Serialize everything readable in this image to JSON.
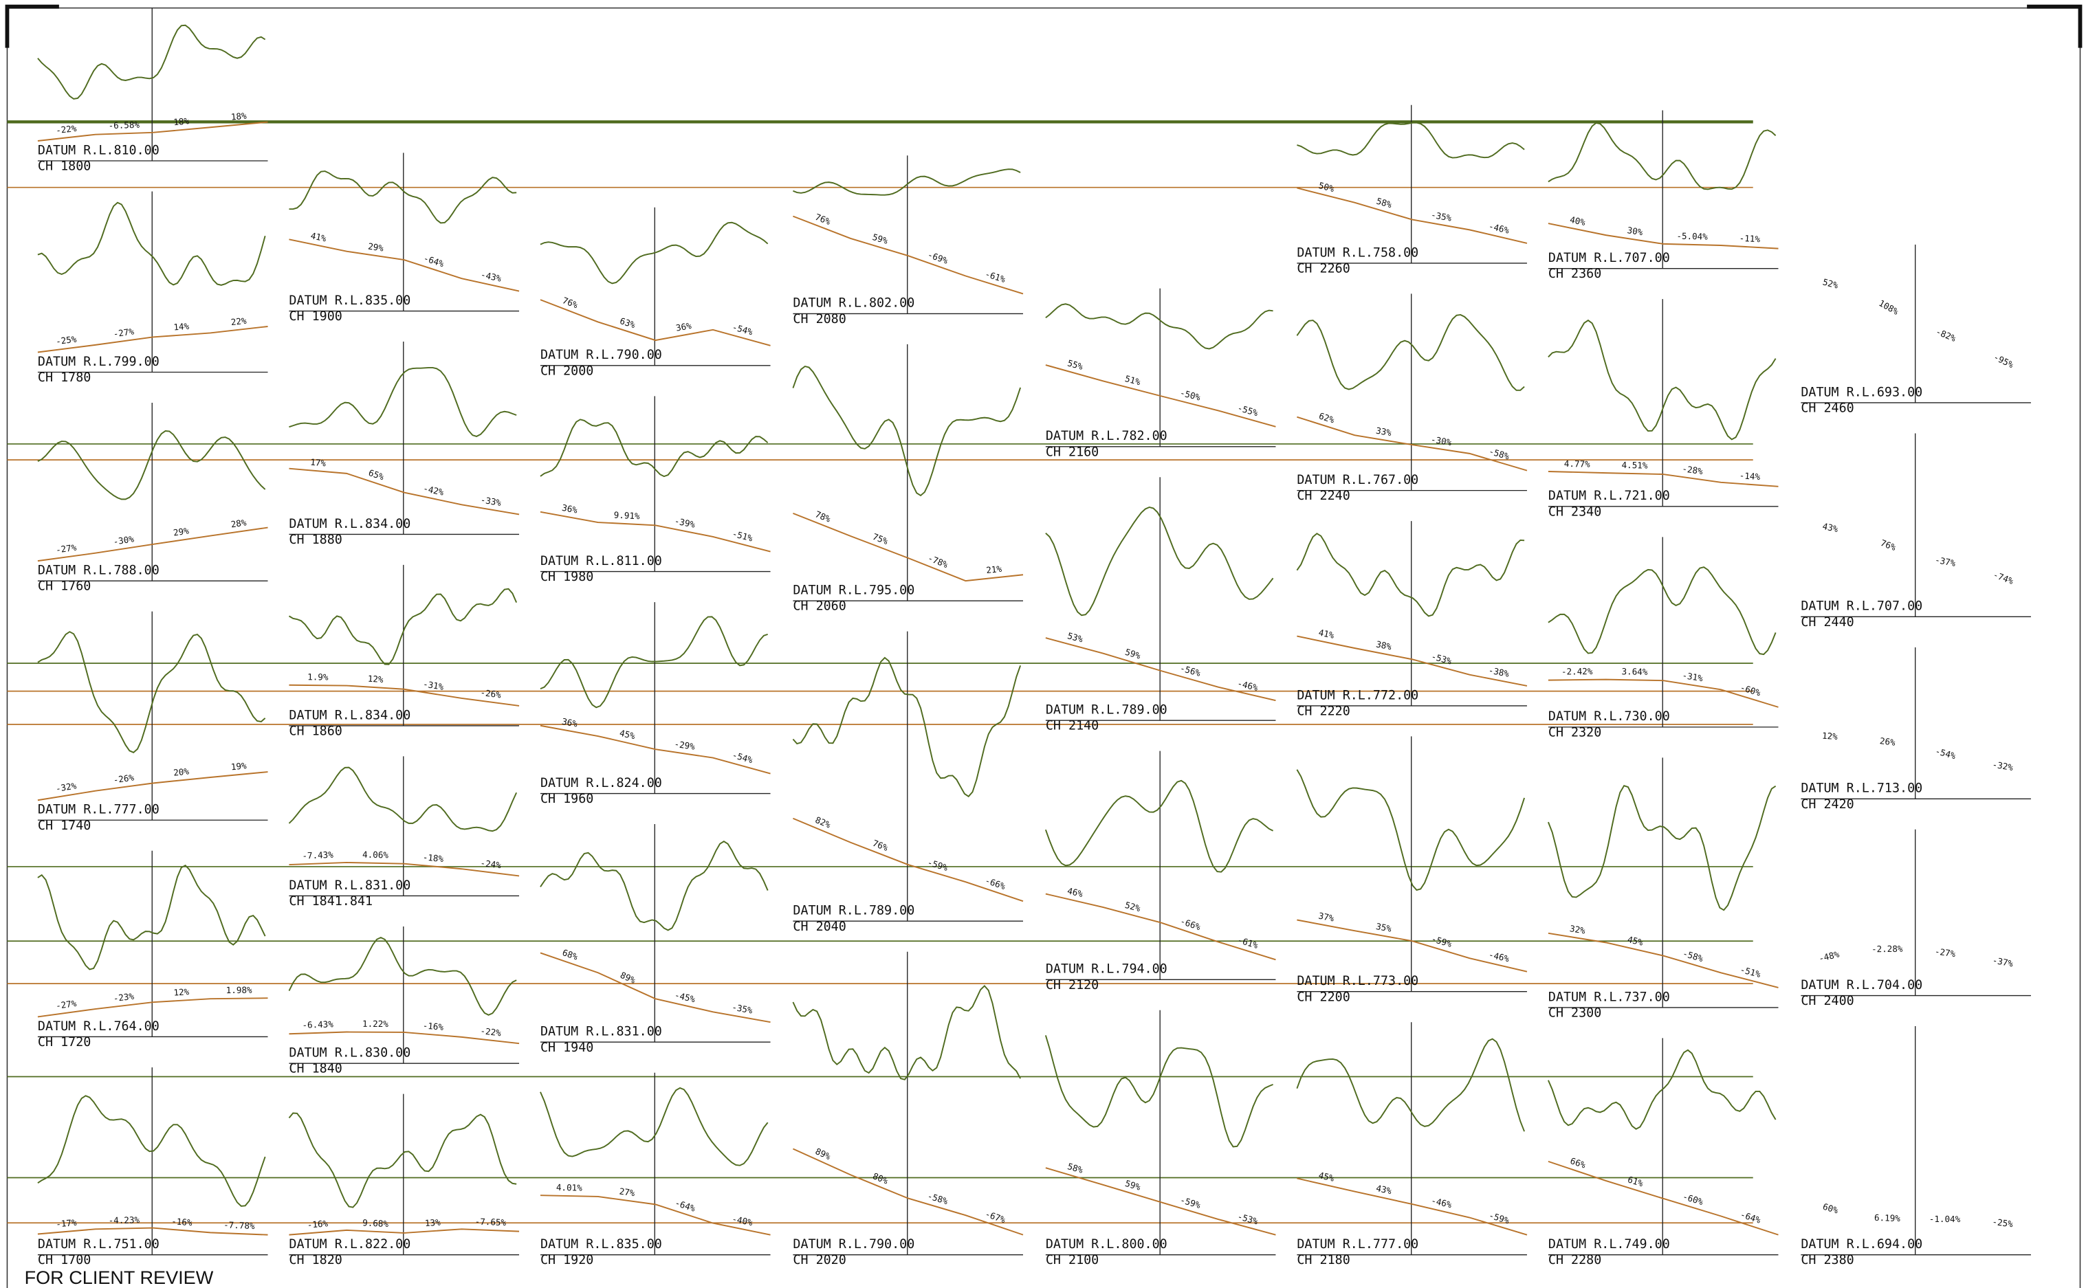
{
  "footer": {
    "text": "FOR CLIENT REVIEW"
  },
  "columns": [
    {
      "sections": [
        {
          "datum": "DATUM R.L.810.00",
          "chainage": "CH 1800",
          "slopes": [
            "-22%",
            "-6.58%",
            "18%",
            "18%"
          ]
        },
        {
          "datum": "DATUM R.L.799.00",
          "chainage": "CH 1780",
          "slopes": [
            "-25%",
            "-27%",
            "14%",
            "22%"
          ]
        },
        {
          "datum": "DATUM R.L.788.00",
          "chainage": "CH 1760",
          "slopes": [
            "-27%",
            "-30%",
            "29%",
            "28%"
          ]
        },
        {
          "datum": "DATUM R.L.777.00",
          "chainage": "CH 1740",
          "slopes": [
            "-32%",
            "-26%",
            "20%",
            "19%"
          ]
        },
        {
          "datum": "DATUM R.L.764.00",
          "chainage": "CH 1720",
          "slopes": [
            "-27%",
            "-23%",
            "12%",
            "1.98%"
          ]
        },
        {
          "datum": "DATUM R.L.751.00",
          "chainage": "CH 1700",
          "slopes": [
            "-17%",
            "-4.23%",
            "-16%",
            "-7.78%"
          ]
        }
      ]
    },
    {
      "sections": [
        {
          "datum": "DATUM R.L.835.00",
          "chainage": "CH 1900",
          "slopes": [
            "41%",
            "29%",
            "-64%",
            "-43%"
          ]
        },
        {
          "datum": "DATUM R.L.834.00",
          "chainage": "CH 1880",
          "slopes": [
            "17%",
            "65%",
            "-42%",
            "-33%"
          ]
        },
        {
          "datum": "DATUM R.L.834.00",
          "chainage": "CH 1860",
          "slopes": [
            "1.9%",
            "12%",
            "-31%",
            "-26%"
          ]
        },
        {
          "datum": "DATUM R.L.831.00",
          "chainage": "CH 1841.841",
          "slopes": [
            "-7.43%",
            "4.06%",
            "-18%",
            "-24%"
          ]
        },
        {
          "datum": "DATUM R.L.830.00",
          "chainage": "CH 1840",
          "slopes": [
            "-6.43%",
            "1.22%",
            "-16%",
            "-22%"
          ]
        },
        {
          "datum": "DATUM R.L.822.00",
          "chainage": "CH 1820",
          "slopes": [
            "-16%",
            "9.68%",
            "13%",
            "-7.65%"
          ]
        }
      ]
    },
    {
      "sections": [
        {
          "datum": "DATUM R.L.790.00",
          "chainage": "CH 2000",
          "slopes": [
            "76%",
            "63%",
            "36%",
            "-54%"
          ]
        },
        {
          "datum": "DATUM R.L.811.00",
          "chainage": "CH 1980",
          "slopes": [
            "36%",
            "9.91%",
            "-39%",
            "-51%"
          ]
        },
        {
          "datum": "DATUM R.L.824.00",
          "chainage": "CH 1960",
          "slopes": [
            "36%",
            "45%",
            "-29%",
            "-54%"
          ]
        },
        {
          "datum": "DATUM R.L.831.00",
          "chainage": "CH 1940",
          "slopes": [
            "68%",
            "89%",
            "-45%",
            "-35%"
          ]
        },
        {
          "datum": "DATUM R.L.835.00",
          "chainage": "CH 1920",
          "slopes": [
            "4.01%",
            "27%",
            "-64%",
            "-40%"
          ]
        }
      ]
    },
    {
      "sections": [
        {
          "datum": "DATUM R.L.802.00",
          "chainage": "CH 2080",
          "slopes": [
            "76%",
            "59%",
            "-69%",
            "-61%"
          ]
        },
        {
          "datum": "DATUM R.L.795.00",
          "chainage": "CH 2060",
          "slopes": [
            "78%",
            "75%",
            "-78%",
            "21%"
          ]
        },
        {
          "datum": "DATUM R.L.789.00",
          "chainage": "CH 2040",
          "slopes": [
            "82%",
            "76%",
            "-59%",
            "-66%"
          ]
        },
        {
          "datum": "DATUM R.L.790.00",
          "chainage": "CH 2020",
          "slopes": [
            "89%",
            "80%",
            "-58%",
            "-67%"
          ]
        }
      ]
    },
    {
      "sections": [
        {
          "datum": "DATUM R.L.782.00",
          "chainage": "CH 2160",
          "slopes": [
            "55%",
            "51%",
            "-50%",
            "-55%"
          ]
        },
        {
          "datum": "DATUM R.L.789.00",
          "chainage": "CH 2140",
          "slopes": [
            "53%",
            "59%",
            "-56%",
            "-46%"
          ]
        },
        {
          "datum": "DATUM R.L.794.00",
          "chainage": "CH 2120",
          "slopes": [
            "46%",
            "52%",
            "-66%",
            "-61%"
          ]
        },
        {
          "datum": "DATUM R.L.800.00",
          "chainage": "CH 2100",
          "slopes": [
            "58%",
            "59%",
            "-59%",
            "-53%"
          ]
        }
      ]
    },
    {
      "sections": [
        {
          "datum": "DATUM R.L.758.00",
          "chainage": "CH 2260",
          "slopes": [
            "50%",
            "58%",
            "-35%",
            "-46%"
          ]
        },
        {
          "datum": "DATUM R.L.767.00",
          "chainage": "CH 2240",
          "slopes": [
            "62%",
            "33%",
            "-30%",
            "-58%"
          ]
        },
        {
          "datum": "DATUM R.L.772.00",
          "chainage": "CH 2220",
          "slopes": [
            "41%",
            "38%",
            "-53%",
            "-38%"
          ]
        },
        {
          "datum": "DATUM R.L.773.00",
          "chainage": "CH 2200",
          "slopes": [
            "37%",
            "35%",
            "-59%",
            "-46%"
          ]
        },
        {
          "datum": "DATUM R.L.777.00",
          "chainage": "CH 2180",
          "slopes": [
            "45%",
            "43%",
            "-46%",
            "-59%"
          ]
        }
      ]
    },
    {
      "sections": [
        {
          "datum": "DATUM R.L.707.00",
          "chainage": "CH 2360",
          "slopes": [
            "40%",
            "30%",
            "-5.04%",
            "-11%"
          ]
        },
        {
          "datum": "DATUM R.L.721.00",
          "chainage": "CH 2340",
          "slopes": [
            "4.77%",
            "4.51%",
            "-28%",
            "-14%"
          ]
        },
        {
          "datum": "DATUM R.L.730.00",
          "chainage": "CH 2320",
          "slopes": [
            "-2.42%",
            "3.64%",
            "-31%",
            "-60%"
          ]
        },
        {
          "datum": "DATUM R.L.737.00",
          "chainage": "CH 2300",
          "slopes": [
            "32%",
            "45%",
            "-58%",
            "-51%"
          ]
        },
        {
          "datum": "DATUM R.L.749.00",
          "chainage": "CH 2280",
          "slopes": [
            "66%",
            "61%",
            "-60%",
            "-64%"
          ]
        }
      ]
    },
    {
      "sections": [
        {
          "datum": "DATUM R.L.693.00",
          "chainage": "CH 2460",
          "slopes": [
            "52%",
            "108%",
            "-82%",
            "-95%"
          ]
        },
        {
          "datum": "DATUM R.L.707.00",
          "chainage": "CH 2440",
          "slopes": [
            "43%",
            "76%",
            "-37%",
            "-74%"
          ]
        },
        {
          "datum": "DATUM R.L.713.00",
          "chainage": "CH 2420",
          "slopes": [
            "12%",
            "26%",
            "-54%",
            "-32%"
          ]
        },
        {
          "datum": "DATUM R.L.704.00",
          "chainage": "CH 2400",
          "slopes": [
            "-48%",
            "-2.28%",
            "-27%",
            "-37%"
          ]
        },
        {
          "datum": "DATUM R.L.694.00",
          "chainage": "CH 2380",
          "slopes": [
            "60%",
            "6.19%",
            "-1.04%",
            "-25%"
          ]
        }
      ]
    }
  ]
}
